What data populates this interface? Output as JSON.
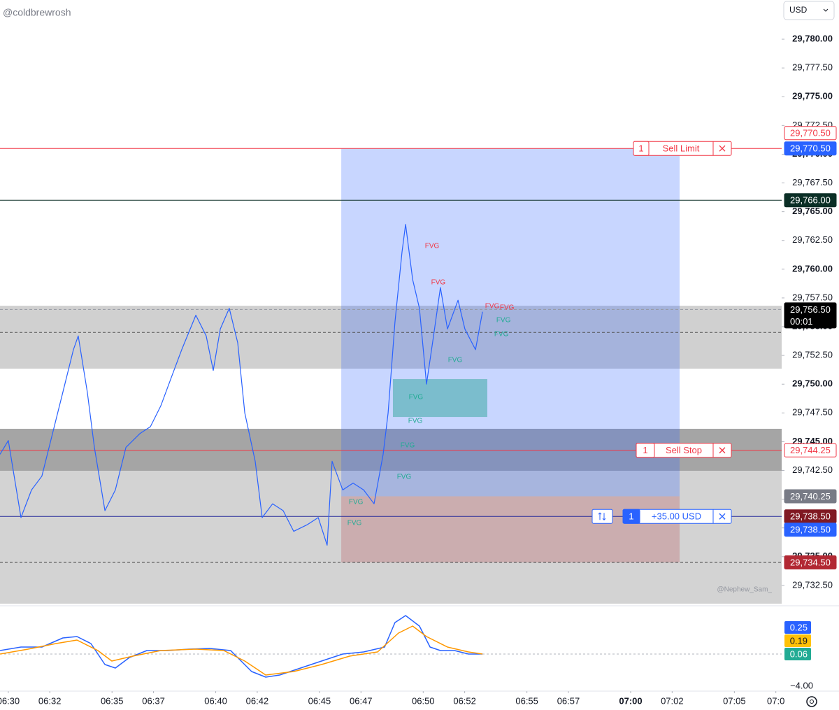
{
  "header": {
    "username": "@coldbrewrosh",
    "currency": "USD",
    "watermark": "@Nephew_Sam_"
  },
  "chart_data": [
    {
      "type": "line",
      "xlim": [
        389.6,
        427.28
      ],
      "ylim": [
        29730.79,
        29783.41
      ],
      "xticks": [
        {
          "value": 390,
          "label": "06:30"
        },
        {
          "value": 392,
          "label": "06:32"
        },
        {
          "value": 395,
          "label": "06:35"
        },
        {
          "value": 397,
          "label": "06:37"
        },
        {
          "value": 400,
          "label": "06:40"
        },
        {
          "value": 402,
          "label": "06:42"
        },
        {
          "value": 405,
          "label": "06:45"
        },
        {
          "value": 407,
          "label": "06:47"
        },
        {
          "value": 410,
          "label": "06:50"
        },
        {
          "value": 412,
          "label": "06:52"
        },
        {
          "value": 415,
          "label": "06:55"
        },
        {
          "value": 417,
          "label": "06:57"
        },
        {
          "value": 420,
          "label": "07:00"
        },
        {
          "value": 422,
          "label": "07:02"
        },
        {
          "value": 425,
          "label": "07:05"
        },
        {
          "value": 427,
          "label": "07:0"
        }
      ],
      "yticks": [
        {
          "value": 29780,
          "label": "29,780.00"
        },
        {
          "value": 29777.5,
          "label": "29,777.50"
        },
        {
          "value": 29775,
          "label": "29,775.00"
        },
        {
          "value": 29772.5,
          "label": "29,772.50"
        },
        {
          "value": 29770,
          "label": "29,770.00"
        },
        {
          "value": 29767.5,
          "label": "29,767.50"
        },
        {
          "value": 29765,
          "label": "29,765.00"
        },
        {
          "value": 29762.5,
          "label": "29,762.50"
        },
        {
          "value": 29760,
          "label": "29,760.00"
        },
        {
          "value": 29757.5,
          "label": "29,757.50"
        },
        {
          "value": 29755,
          "label": "29,755.00"
        },
        {
          "value": 29752.5,
          "label": "29,752.50"
        },
        {
          "value": 29750,
          "label": "29,750.00"
        },
        {
          "value": 29747.5,
          "label": "29,747.50"
        },
        {
          "value": 29745,
          "label": "29,745.00"
        },
        {
          "value": 29742.5,
          "label": "29,742.50"
        },
        {
          "value": 29740,
          "label": "29,740.00"
        },
        {
          "value": 29737.5,
          "label": "29,737.50"
        },
        {
          "value": 29735,
          "label": "29,735.00"
        },
        {
          "value": 29732.5,
          "label": "29,732.50"
        }
      ],
      "series": [
        {
          "color": "#2962ff",
          "x": [
            389.6,
            390.0,
            390.61,
            391.12,
            391.62,
            392.13,
            392.63,
            393.14,
            393.37,
            393.81,
            394.15,
            394.66,
            395.16,
            395.67,
            396.34,
            396.85,
            397.35,
            397.86,
            398.36,
            399.04,
            399.54,
            399.88,
            400.22,
            400.65,
            401.06,
            401.4,
            401.9,
            402.24,
            402.74,
            403.25,
            403.76,
            404.43,
            404.94,
            405.37,
            405.61,
            406.12,
            406.62,
            407.13,
            407.63,
            408.07,
            408.31,
            408.64,
            408.98,
            409.15,
            409.49,
            409.82,
            410.16,
            410.5,
            410.83,
            411.17,
            411.68,
            412.01,
            412.52,
            412.86
          ],
          "values": [
            29743.9,
            29745.1,
            29738.4,
            29740.8,
            29742.0,
            29745.7,
            29749.3,
            29753.0,
            29754.2,
            29749.3,
            29744.5,
            29739.0,
            29740.8,
            29744.5,
            29745.7,
            29746.3,
            29748.1,
            29750.6,
            29753.0,
            29756.0,
            29754.2,
            29751.2,
            29754.8,
            29756.6,
            29753.6,
            29747.5,
            29743.3,
            29738.4,
            29739.6,
            29739.0,
            29737.2,
            29737.8,
            29738.4,
            29736.0,
            29743.3,
            29740.8,
            29741.4,
            29740.8,
            29739.6,
            29743.9,
            29747.5,
            29755.4,
            29761.5,
            29763.9,
            29759.1,
            29756.6,
            29750.0,
            29754.2,
            29758.4,
            29754.8,
            29757.3,
            29754.8,
            29753.0,
            29756.3
          ]
        }
      ],
      "zones": [
        {
          "price": [
            29756.82,
            29751.35
          ],
          "color": "rgba(150,150,150,0.45)"
        },
        {
          "price": [
            29746.12,
            29742.47
          ],
          "color": "rgba(100,100,100,0.58)"
        },
        {
          "price": [
            29742.47,
            29730.91
          ],
          "color": "rgba(150,150,150,0.42)"
        },
        {
          "price": [
            29770.5,
            29740.25
          ],
          "time": [
            406.05,
            422.36
          ],
          "color": "rgba(41,98,255,0.26)"
        },
        {
          "price": [
            29740.25,
            29734.5
          ],
          "time": [
            406.05,
            422.36
          ],
          "color": "rgba(178,40,51,0.22)"
        },
        {
          "price": [
            29750.44,
            29747.15
          ],
          "time": [
            408.54,
            413.09
          ],
          "color": "rgba(8,153,129,0.4)"
        }
      ],
      "levels": [
        {
          "price": 29770.5,
          "color": "#f23645",
          "dashed": false
        },
        {
          "price": 29766,
          "color": "#0b2f26",
          "dashed": false
        },
        {
          "price": 29756.5,
          "color": "#9598a1",
          "dashed": true
        },
        {
          "price": 29754.5,
          "color": "#555555",
          "dashed": true
        },
        {
          "price": 29744.25,
          "color": "#f23645",
          "dashed": false
        },
        {
          "price": 29738.5,
          "color": "#2a2e9c",
          "dashed": false
        },
        {
          "price": 29734.5,
          "color": "#444444",
          "dashed": true
        }
      ],
      "annotations": [
        {
          "text": "FVG",
          "time": 410.43,
          "price": 29762.0,
          "color": "#f23645"
        },
        {
          "text": "FVG",
          "time": 410.73,
          "price": 29758.83,
          "color": "#f23645"
        },
        {
          "text": "FVG",
          "time": 413.33,
          "price": 29756.76,
          "color": "#f23645"
        },
        {
          "text": "FVG",
          "time": 414.04,
          "price": 29756.64,
          "color": "#f23645"
        },
        {
          "text": "FVG",
          "time": 413.87,
          "price": 29755.55,
          "color": "#22ab94"
        },
        {
          "text": "FVG",
          "time": 413.77,
          "price": 29754.33,
          "color": "#22ab94"
        },
        {
          "text": "FVG",
          "time": 411.54,
          "price": 29752.08,
          "color": "#22ab94"
        },
        {
          "text": "FVG",
          "time": 409.65,
          "price": 29748.86,
          "color": "#22ab94"
        },
        {
          "text": "FVG",
          "time": 409.62,
          "price": 29746.79,
          "color": "#22ab94"
        },
        {
          "text": "FVG",
          "time": 409.25,
          "price": 29744.66,
          "color": "#22ab94"
        },
        {
          "text": "FVG",
          "time": 409.08,
          "price": 29741.92,
          "color": "#22ab94"
        },
        {
          "text": "FVG",
          "time": 406.76,
          "price": 29739.73,
          "color": "#22ab94"
        },
        {
          "text": "FVG",
          "time": 406.69,
          "price": 29737.91,
          "color": "#22ab94"
        }
      ],
      "orders": [
        {
          "qty": "1",
          "label": "Sell Limit",
          "price": 29770.5,
          "color": "#f23645"
        },
        {
          "qty": "1",
          "label": "Sell Stop",
          "price": 29744.25,
          "color": "#f23645"
        },
        {
          "qty": "1",
          "label": "+35.00 USD",
          "price": 29738.5,
          "color": "#2962ff"
        }
      ],
      "price_labels": [
        {
          "value": 29770.5,
          "label": "29,770.50",
          "color": "#2962ff",
          "filled": true
        },
        {
          "value": 29770.5,
          "label": "29,770.50",
          "color": "#f23645",
          "filled": false
        },
        {
          "value": 29766,
          "label": "29,766.00",
          "color": "#0b2f26",
          "filled": true
        },
        {
          "value": 29756.5,
          "label": "29,756.50",
          "countdown": "00:01",
          "color": "#000000",
          "filled": true
        },
        {
          "value": 29744.25,
          "label": "29,744.25",
          "color": "#f23645",
          "filled": false
        },
        {
          "value": 29740.25,
          "label": "29,740.25",
          "color": "#787b86",
          "filled": true
        },
        {
          "value": 29738.5,
          "label": "29,738.50",
          "color": "#801922",
          "filled": true
        },
        {
          "value": 29738.5,
          "label": "29,738.50",
          "color": "#2962ff",
          "filled": true
        },
        {
          "value": 29734.5,
          "label": "29,734.50",
          "color": "#b22833",
          "filled": true
        }
      ]
    },
    {
      "type": "line",
      "xlim": [
        389.6,
        427.28
      ],
      "ylim": [
        -0.3,
        0.3
      ],
      "series": [
        {
          "color": "#2962ff",
          "x": [
            389.6,
            390.61,
            391.62,
            392.63,
            393.31,
            393.98,
            394.66,
            395.16,
            395.84,
            396.68,
            397.69,
            398.7,
            399.71,
            400.72,
            401.73,
            402.41,
            403.08,
            404.09,
            405.1,
            406.12,
            407.13,
            408.14,
            408.64,
            409.15,
            409.82,
            410.33,
            410.83,
            411.51,
            412.18,
            412.86
          ],
          "values": [
            0.025,
            0.05,
            0.05,
            0.115,
            0.125,
            0.075,
            -0.075,
            -0.1,
            -0.025,
            0.025,
            0.025,
            0.035,
            0.04,
            0.025,
            -0.125,
            -0.165,
            -0.15,
            -0.1,
            -0.05,
            0,
            0.015,
            0.05,
            0.225,
            0.275,
            0.2,
            0.05,
            0.025,
            0.025,
            0,
            0
          ]
        },
        {
          "color": "#ff9800",
          "x": [
            389.6,
            390.95,
            392.3,
            393.31,
            394.32,
            394.99,
            396.0,
            397.35,
            399.04,
            400.39,
            401.4,
            402.41,
            403.76,
            405.1,
            406.45,
            407.8,
            408.81,
            409.49,
            410.16,
            411.17,
            412.18,
            412.86
          ],
          "values": [
            0,
            0.035,
            0.075,
            0.1,
            0.025,
            -0.05,
            -0.015,
            0.025,
            0.035,
            0.025,
            -0.05,
            -0.15,
            -0.125,
            -0.075,
            -0.015,
            0.015,
            0.15,
            0.2,
            0.125,
            0.05,
            0.015,
            0
          ]
        }
      ],
      "badges": [
        {
          "value": 0.25,
          "color": "#2962ff"
        },
        {
          "value": 0.19,
          "color": "#ffc107"
        },
        {
          "value": 0.06,
          "color": "#22ab94"
        }
      ],
      "bottom_tick": {
        "value": -4,
        "label": "−4.00"
      }
    }
  ]
}
